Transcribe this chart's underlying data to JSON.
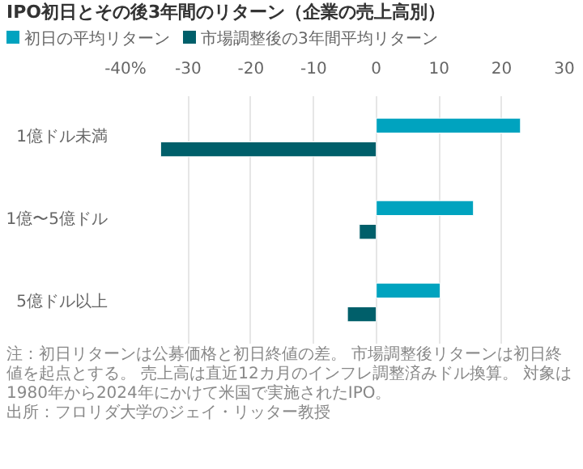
{
  "chart_data": {
    "type": "bar",
    "orientation": "horizontal",
    "title": "IPO初日とその後3年間のリターン（企業の売上高別）",
    "categories": [
      "1億ドル未満",
      "1億〜5億ドル",
      "5億ドル以上"
    ],
    "series": [
      {
        "name": "初日の平均リターン",
        "color": "#00a3bf",
        "values": [
          23.0,
          15.5,
          10.2
        ]
      },
      {
        "name": "市場調整後の3年間平均リターン",
        "color": "#005f6a",
        "values": [
          -34.4,
          -2.7,
          -4.6
        ]
      }
    ],
    "xlim": [
      -40,
      30
    ],
    "xticks": [
      {
        "value": -40,
        "label": "-40%"
      },
      -30,
      -20,
      -10,
      0,
      10,
      20,
      30
    ],
    "grid": "x",
    "legend": "top",
    "annotations": [
      "注：初日リターンは公募価格と初日終値の差。 市場調整後リターンは初日終値を起点とする。 売上高は直近12カ月のインフレ調整済みドル換算。 対象は1980年から2024年にかけて米国で実施されたIPO。",
      "出所：フロリダ大学のジェイ・リッター教授"
    ]
  }
}
